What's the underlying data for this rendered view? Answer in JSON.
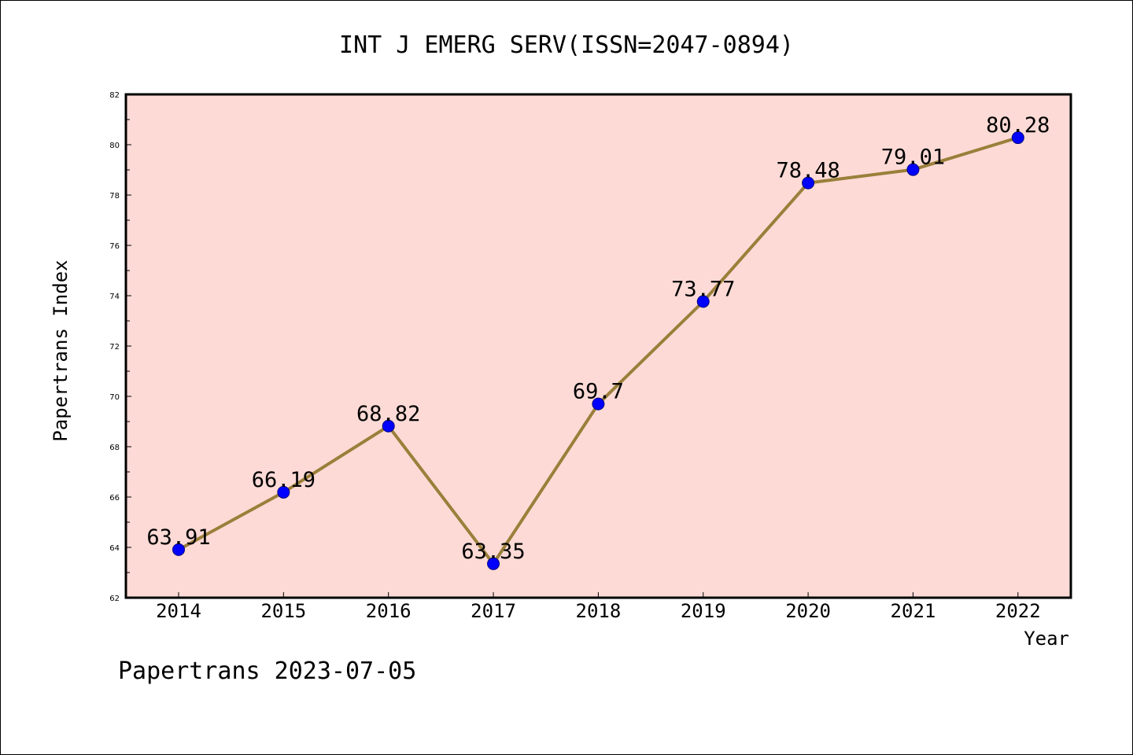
{
  "chart_data": {
    "type": "line",
    "title": "INT J EMERG SERV(ISSN=2047-0894)",
    "xlabel": "Year",
    "ylabel": "Papertrans Index",
    "x": [
      "2014",
      "2015",
      "2016",
      "2017",
      "2018",
      "2019",
      "2020",
      "2021",
      "2022"
    ],
    "y": [
      63.91,
      66.19,
      68.82,
      63.35,
      69.7,
      73.77,
      78.48,
      79.01,
      80.28
    ],
    "data_labels": [
      "63.91",
      "66.19",
      "68.82",
      "63.35",
      "69.7",
      "73.77",
      "78.48",
      "79.01",
      "80.28"
    ],
    "ylim": [
      62,
      82
    ],
    "y_ticks": [
      "62",
      "64",
      "66",
      "68",
      "70",
      "72",
      "74",
      "76",
      "78",
      "80",
      "82"
    ],
    "grid": false,
    "legend": "none",
    "footer": "Papertrans 2023-07-05",
    "colors": {
      "plot_background": "#fddad6",
      "line": "#9a7f3a",
      "marker": "#0000ff",
      "marker_edge": "#000080",
      "axis": "#000000"
    }
  }
}
